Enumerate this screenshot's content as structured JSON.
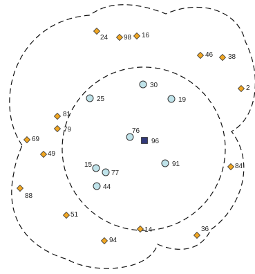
{
  "colors": {
    "circle_fill": "#bfe3ea",
    "diamond_fill": "#f0a623",
    "square_fill": "#333a7a",
    "stroke": "#333333",
    "boundary": "#111111"
  },
  "nodes": [
    {
      "id": "30",
      "label": "30",
      "shape": "circle"
    },
    {
      "id": "25",
      "label": "25",
      "shape": "circle"
    },
    {
      "id": "19",
      "label": "19",
      "shape": "circle"
    },
    {
      "id": "76",
      "label": "76",
      "shape": "circle"
    },
    {
      "id": "96",
      "label": "96",
      "shape": "square"
    },
    {
      "id": "91",
      "label": "91",
      "shape": "circle"
    },
    {
      "id": "15",
      "label": "15",
      "shape": "circle"
    },
    {
      "id": "77",
      "label": "77",
      "shape": "circle"
    },
    {
      "id": "44",
      "label": "44",
      "shape": "circle"
    },
    {
      "id": "24",
      "label": "24",
      "shape": "diamond"
    },
    {
      "id": "98",
      "label": "98",
      "shape": "diamond"
    },
    {
      "id": "16",
      "label": "16",
      "shape": "diamond"
    },
    {
      "id": "46",
      "label": "46",
      "shape": "diamond"
    },
    {
      "id": "38",
      "label": "38",
      "shape": "diamond"
    },
    {
      "id": "2",
      "label": "2",
      "shape": "diamond"
    },
    {
      "id": "81",
      "label": "81",
      "shape": "diamond"
    },
    {
      "id": "79",
      "label": "79",
      "shape": "diamond"
    },
    {
      "id": "69",
      "label": "69",
      "shape": "diamond"
    },
    {
      "id": "49",
      "label": "49",
      "shape": "diamond"
    },
    {
      "id": "88",
      "label": "88",
      "shape": "diamond"
    },
    {
      "id": "51",
      "label": "51",
      "shape": "diamond"
    },
    {
      "id": "84",
      "label": "84",
      "shape": "diamond"
    },
    {
      "id": "14",
      "label": "14",
      "shape": "diamond"
    },
    {
      "id": "36",
      "label": "36",
      "shape": "diamond"
    },
    {
      "id": "94",
      "label": "94",
      "shape": "diamond"
    }
  ]
}
